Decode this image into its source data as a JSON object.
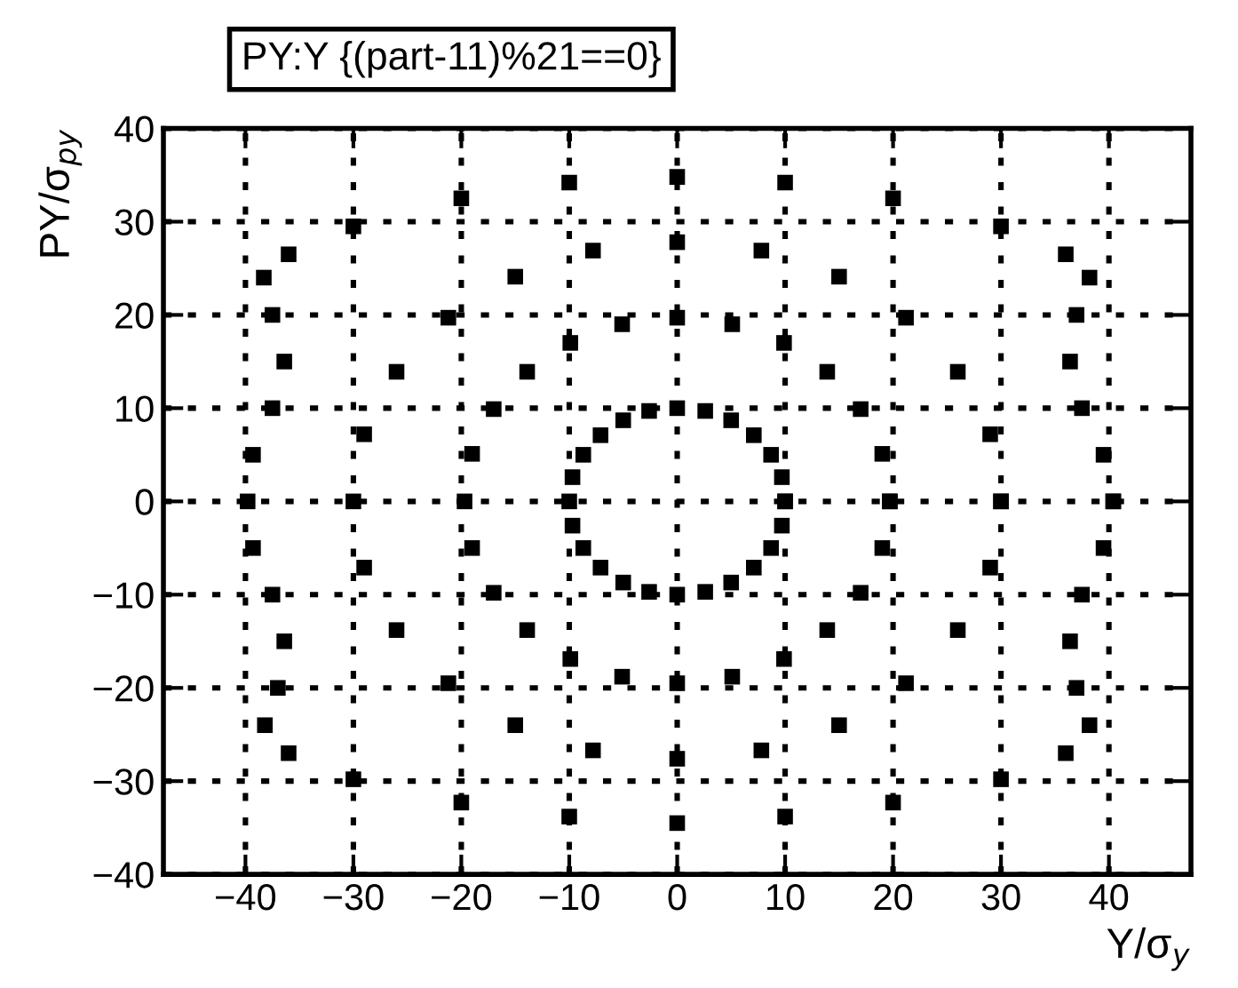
{
  "chart_data": {
    "type": "scatter",
    "title": "PY:Y {(part-11)%21==0}",
    "xlabel": "Y/σ$_{y}$",
    "ylabel": "PY/σ$_{py}$",
    "xlim": [
      -47.6,
      47.6
    ],
    "ylim": [
      -40,
      40
    ],
    "xticks": [
      -40,
      -30,
      -20,
      -10,
      0,
      10,
      20,
      30,
      40
    ],
    "yticks": [
      -40,
      -30,
      -20,
      -10,
      0,
      10,
      20,
      30,
      40
    ],
    "grid": true,
    "marker": "square",
    "series": [
      {
        "color": "#000000",
        "x": [
          10,
          9.7,
          8.7,
          7.1,
          5,
          2.6,
          0,
          -2.6,
          -5,
          -7.1,
          -8.7,
          -9.7,
          -10,
          -9.7,
          -8.7,
          -7.1,
          -5,
          -2.6,
          0,
          2.6,
          5,
          7.1,
          8.7,
          9.7,
          10
        ],
        "values": [
          0,
          2.6,
          5,
          7.1,
          8.7,
          9.7,
          10,
          9.7,
          8.7,
          7.1,
          5,
          2.6,
          0,
          -2.6,
          -5,
          -7.1,
          -8.7,
          -9.7,
          -10,
          -9.7,
          -8.7,
          -7.1,
          -5,
          -2.6,
          0
        ]
      },
      {
        "color": "#000000",
        "x": [
          19.7,
          19,
          17,
          13.9,
          9.9,
          5.1,
          0,
          -5.1,
          -9.9,
          -13.9,
          -17,
          -19,
          -19.7,
          -19,
          -17,
          -13.9,
          -9.9,
          -5.1,
          0,
          5.1,
          9.9,
          13.9,
          17,
          19,
          19.7
        ],
        "values": [
          0,
          5.1,
          9.9,
          13.9,
          17,
          19,
          19.7,
          19,
          17,
          13.9,
          9.9,
          5.1,
          0,
          -5,
          -9.8,
          -13.8,
          -16.9,
          -18.8,
          -19.5,
          -18.8,
          -16.9,
          -13.8,
          -9.8,
          -5,
          0
        ]
      },
      {
        "color": "#000000",
        "x": [
          30,
          29,
          26,
          21.2,
          15,
          7.8,
          0,
          -7.8,
          -15,
          -21.2,
          -26,
          -29,
          -30,
          -29,
          -26,
          -21.2,
          -15,
          -7.8,
          0,
          7.8,
          15,
          21.2,
          26,
          29,
          30
        ],
        "values": [
          0,
          7.2,
          13.9,
          19.7,
          24.1,
          26.9,
          27.8,
          26.9,
          24.1,
          19.7,
          13.9,
          7.2,
          0,
          -7.1,
          -13.8,
          -19.5,
          -24,
          -26.7,
          -27.6,
          -26.7,
          -24,
          -19.5,
          -13.8,
          -7.1,
          0
        ]
      },
      {
        "color": "#000000",
        "x": [
          40.4,
          39.5,
          37.5,
          36.4,
          37,
          38.2,
          36,
          30,
          20,
          10,
          0,
          -10,
          -20,
          -30,
          -36,
          -38.3,
          -37.5,
          -36.4,
          -37.5,
          -39.3,
          -39.8,
          -39.3,
          -37.5,
          -36.4,
          -37,
          -38.2,
          -36,
          -30,
          -20,
          -10,
          0,
          10,
          20,
          30,
          36,
          38.2,
          37,
          36.4,
          37.5,
          39.5,
          40.4
        ],
        "values": [
          0,
          5,
          10,
          15,
          20,
          24,
          26.5,
          29.5,
          32.5,
          34.2,
          34.8,
          34.2,
          32.5,
          29.5,
          26.5,
          24,
          20,
          15,
          10,
          5,
          0,
          -5,
          -10,
          -15,
          -20,
          -24,
          -27,
          -29.8,
          -32.3,
          -33.8,
          -34.5,
          -33.8,
          -32.3,
          -29.8,
          -27,
          -24,
          -20,
          -15,
          -10,
          -5,
          0
        ]
      }
    ]
  }
}
